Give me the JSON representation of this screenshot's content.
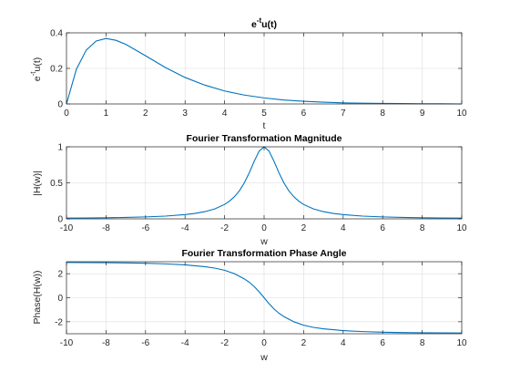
{
  "figure": {
    "background": "#ffffff"
  },
  "chart_data": [
    {
      "type": "line",
      "title_main": "e",
      "title_sup": "-t",
      "title_tail": "u(t)",
      "xlabel": "t",
      "ylabel_main": "e",
      "ylabel_sup": "-t",
      "ylabel_tail": "u(t)",
      "xlim": [
        0,
        10
      ],
      "ylim": [
        0,
        0.4
      ],
      "xticks": [
        0,
        1,
        2,
        3,
        4,
        5,
        6,
        7,
        8,
        9,
        10
      ],
      "xtick_labels": [
        "0",
        "1",
        "2",
        "3",
        "4",
        "5",
        "6",
        "7",
        "8",
        "9",
        "10"
      ],
      "yticks": [
        0,
        0.2,
        0.4
      ],
      "ytick_labels": [
        "0",
        "0.2",
        "0.4"
      ],
      "grid": true,
      "color": "#0072bd",
      "series": [
        {
          "x": [
            0,
            0.25,
            0.5,
            0.75,
            1,
            1.25,
            1.5,
            2,
            2.5,
            3,
            3.5,
            4,
            4.5,
            5,
            5.5,
            6,
            6.5,
            7,
            7.5,
            8,
            8.5,
            9,
            9.5,
            10
          ],
          "y": [
            0,
            0.195,
            0.303,
            0.354,
            0.368,
            0.358,
            0.335,
            0.271,
            0.205,
            0.149,
            0.106,
            0.073,
            0.05,
            0.034,
            0.022,
            0.015,
            0.01,
            0.006,
            0.004,
            0.003,
            0.002,
            0.001,
            0.001,
            0
          ]
        }
      ]
    },
    {
      "type": "line",
      "title": "Fourier Transformation Magnitude",
      "xlabel": "w",
      "ylabel": "|H(w)|",
      "xlim": [
        -10,
        10
      ],
      "ylim": [
        0,
        1
      ],
      "xticks": [
        -10,
        -8,
        -6,
        -4,
        -2,
        0,
        2,
        4,
        6,
        8,
        10
      ],
      "xtick_labels": [
        "-10",
        "-8",
        "-6",
        "-4",
        "-2",
        "0",
        "2",
        "4",
        "6",
        "8",
        "10"
      ],
      "yticks": [
        0,
        0.5,
        1
      ],
      "ytick_labels": [
        "0",
        "0.5",
        "1"
      ],
      "grid": true,
      "color": "#0072bd",
      "series": [
        {
          "x": [
            -10,
            -9,
            -8,
            -7,
            -6,
            -5,
            -4,
            -3.5,
            -3,
            -2.5,
            -2,
            -1.75,
            -1.5,
            -1.25,
            -1,
            -0.75,
            -0.5,
            -0.25,
            0,
            0.25,
            0.5,
            0.75,
            1,
            1.25,
            1.5,
            1.75,
            2,
            2.5,
            3,
            3.5,
            4,
            5,
            6,
            7,
            8,
            9,
            10
          ],
          "y": [
            0.01,
            0.012,
            0.015,
            0.02,
            0.027,
            0.038,
            0.059,
            0.075,
            0.1,
            0.138,
            0.2,
            0.246,
            0.308,
            0.39,
            0.5,
            0.64,
            0.8,
            0.941,
            1,
            0.941,
            0.8,
            0.64,
            0.5,
            0.39,
            0.308,
            0.246,
            0.2,
            0.138,
            0.1,
            0.075,
            0.059,
            0.038,
            0.027,
            0.02,
            0.015,
            0.012,
            0.01
          ]
        }
      ]
    },
    {
      "type": "line",
      "title": "Fourier Transformation Phase Angle",
      "xlabel": "w",
      "ylabel": "Phase(H(w))",
      "xlim": [
        -10,
        10
      ],
      "ylim": [
        -3,
        3
      ],
      "xticks": [
        -10,
        -8,
        -6,
        -4,
        -2,
        0,
        2,
        4,
        6,
        8,
        10
      ],
      "xtick_labels": [
        "-10",
        "-8",
        "-6",
        "-4",
        "-2",
        "0",
        "2",
        "4",
        "6",
        "8",
        "10"
      ],
      "yticks": [
        -2,
        0,
        2
      ],
      "ytick_labels": [
        "-2",
        "0",
        "2"
      ],
      "grid": true,
      "color": "#0072bd",
      "series": [
        {
          "x": [
            -10,
            -9,
            -8,
            -7,
            -6,
            -5,
            -4,
            -3,
            -2.5,
            -2,
            -1.5,
            -1,
            -0.75,
            -0.5,
            -0.25,
            0,
            0.25,
            0.5,
            0.75,
            1,
            1.5,
            2,
            2.5,
            3,
            4,
            5,
            6,
            7,
            8,
            9,
            10
          ],
          "y": [
            2.94,
            2.93,
            2.92,
            2.9,
            2.87,
            2.82,
            2.74,
            2.59,
            2.47,
            2.29,
            2.0,
            1.57,
            1.29,
            0.93,
            0.49,
            0,
            -0.49,
            -0.93,
            -1.29,
            -1.57,
            -2.0,
            -2.29,
            -2.47,
            -2.59,
            -2.74,
            -2.82,
            -2.87,
            -2.9,
            -2.92,
            -2.93,
            -2.94
          ]
        }
      ]
    }
  ]
}
